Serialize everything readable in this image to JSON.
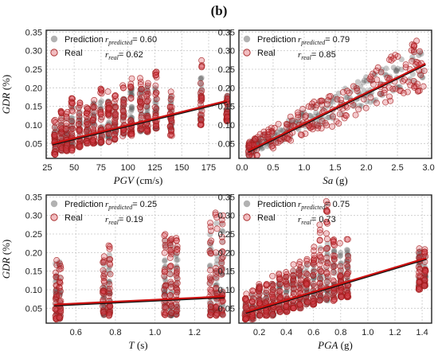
{
  "figure_label": "(b)",
  "colors": {
    "prediction": "#555555",
    "real": "#d9424a",
    "fit_line": "#cc1111",
    "grid": "#c8c8c8",
    "frame": "#222222"
  },
  "chart_data": [
    {
      "id": "pgv",
      "type": "scatter",
      "ylabel_var": "GDR",
      "ylabel_unit": " (%)",
      "xlabel_var": "PGV",
      "xlabel_unit": " (cm/s)",
      "xticks": [
        25,
        50,
        75,
        100,
        125,
        150,
        175
      ],
      "xtick_labels": [
        "25",
        "50",
        "75",
        "100",
        "125",
        "150",
        "175"
      ],
      "yticks": [
        0.05,
        0.1,
        0.15,
        0.2,
        0.25,
        0.3,
        0.35
      ],
      "ytick_labels": [
        "0.05",
        "0.10",
        "0.15",
        "0.20",
        "0.25",
        "0.30",
        "0.35"
      ],
      "xlim": [
        24,
        195
      ],
      "ylim": [
        0.01,
        0.355
      ],
      "grid": true,
      "legend": [
        {
          "label": "Prediction",
          "r_sym": "r",
          "r_sub": "predicted",
          "r_val": "= 0.60"
        },
        {
          "label": "Real",
          "r_sym": "r",
          "r_sub": "real",
          "r_val": "= 0.62"
        }
      ],
      "series": [
        {
          "name": "Prediction",
          "columns": [
            [
              32,
              0.02,
              0.1
            ],
            [
              38,
              0.03,
              0.13
            ],
            [
              43,
              0.03,
              0.12
            ],
            [
              48,
              0.04,
              0.16
            ],
            [
              55,
              0.04,
              0.15
            ],
            [
              62,
              0.05,
              0.14
            ],
            [
              68,
              0.05,
              0.16
            ],
            [
              75,
              0.05,
              0.18
            ],
            [
              82,
              0.06,
              0.17
            ],
            [
              88,
              0.06,
              0.16
            ],
            [
              96,
              0.07,
              0.19
            ],
            [
              103,
              0.08,
              0.2
            ],
            [
              112,
              0.08,
              0.21
            ],
            [
              118,
              0.08,
              0.21
            ],
            [
              126,
              0.09,
              0.22
            ],
            [
              140,
              0.09,
              0.18
            ],
            [
              168,
              0.11,
              0.24
            ],
            [
              192,
              0.11,
              0.18
            ]
          ]
        },
        {
          "name": "Real",
          "columns": [
            [
              32,
              0.02,
              0.12
            ],
            [
              38,
              0.03,
              0.15
            ],
            [
              43,
              0.03,
              0.14
            ],
            [
              48,
              0.03,
              0.18
            ],
            [
              55,
              0.04,
              0.17
            ],
            [
              62,
              0.05,
              0.16
            ],
            [
              68,
              0.05,
              0.18
            ],
            [
              75,
              0.05,
              0.2
            ],
            [
              82,
              0.05,
              0.19
            ],
            [
              88,
              0.06,
              0.18
            ],
            [
              96,
              0.07,
              0.21
            ],
            [
              103,
              0.07,
              0.23
            ],
            [
              112,
              0.08,
              0.24
            ],
            [
              118,
              0.08,
              0.22
            ],
            [
              126,
              0.09,
              0.25
            ],
            [
              140,
              0.07,
              0.2
            ],
            [
              168,
              0.1,
              0.28
            ],
            [
              192,
              0.11,
              0.18
            ]
          ]
        }
      ],
      "fit": {
        "x": [
          30,
          192
        ],
        "y": [
          0.05,
          0.165
        ]
      }
    },
    {
      "id": "sa",
      "type": "scatter",
      "ylabel_var": "",
      "ylabel_unit": "",
      "xlabel_var": "Sa",
      "xlabel_unit": " (g)",
      "xticks": [
        0.0,
        0.5,
        1.0,
        1.5,
        2.0,
        2.5,
        3.0
      ],
      "xtick_labels": [
        "0.0",
        "0.5",
        "1.0",
        "1.5",
        "2.0",
        "2.5",
        "3.0"
      ],
      "yticks": [
        0.05,
        0.1,
        0.15,
        0.2,
        0.25,
        0.3,
        0.35
      ],
      "ytick_labels": [
        "0.05",
        "0.10",
        "0.15",
        "0.20",
        "0.25",
        "0.30",
        "0.35"
      ],
      "xlim": [
        -0.05,
        3.05
      ],
      "ylim": [
        0.01,
        0.355
      ],
      "grid": true,
      "legend": [
        {
          "label": "Prediction",
          "r_sym": "r",
          "r_sub": "predicted",
          "r_val": "= 0.79"
        },
        {
          "label": "Real",
          "r_sym": "r",
          "r_sub": "real",
          "r_val": "= 0.85"
        }
      ],
      "series": [
        {
          "name": "Prediction",
          "band": {
            "x": [
              0.1,
              2.95
            ],
            "y0": [
              0.035,
              0.27
            ],
            "spread": 0.03
          }
        },
        {
          "name": "Real",
          "band": {
            "x": [
              0.1,
              2.95
            ],
            "y0": [
              0.03,
              0.27
            ],
            "spread": 0.045
          }
        }
      ],
      "fit": {
        "x": [
          0.1,
          2.95
        ],
        "y": [
          0.03,
          0.265
        ]
      }
    },
    {
      "id": "t",
      "type": "scatter",
      "ylabel_var": "GDR",
      "ylabel_unit": " (%)",
      "xlabel_var": "T",
      "xlabel_unit": " (s)",
      "xticks": [
        0.6,
        0.8,
        1.0,
        1.2
      ],
      "xtick_labels": [
        "0.6",
        "0.8",
        "1.0",
        "1.2"
      ],
      "yticks": [
        0.05,
        0.1,
        0.15,
        0.2,
        0.25,
        0.3,
        0.35
      ],
      "ytick_labels": [
        "0.05",
        "0.10",
        "0.15",
        "0.20",
        "0.25",
        "0.30",
        "0.35"
      ],
      "xlim": [
        0.45,
        1.38
      ],
      "ylim": [
        0.01,
        0.355
      ],
      "grid": true,
      "legend": [
        {
          "label": "Prediction",
          "r_sym": "r",
          "r_sub": "predicted",
          "r_val": "= 0.25"
        },
        {
          "label": "Real",
          "r_sym": "r",
          "r_sub": "real",
          "r_val": "= 0.19"
        }
      ],
      "series": [
        {
          "name": "Prediction",
          "columns": [
            [
              0.5,
              0.02,
              0.17
            ],
            [
              0.52,
              0.02,
              0.18
            ],
            [
              0.74,
              0.03,
              0.18
            ],
            [
              0.77,
              0.03,
              0.2
            ],
            [
              1.05,
              0.03,
              0.24
            ],
            [
              1.08,
              0.03,
              0.25
            ],
            [
              1.11,
              0.03,
              0.22
            ],
            [
              1.28,
              0.03,
              0.26
            ],
            [
              1.31,
              0.03,
              0.3
            ],
            [
              1.34,
              0.03,
              0.28
            ]
          ]
        },
        {
          "name": "Real",
          "columns": [
            [
              0.5,
              0.02,
              0.19
            ],
            [
              0.52,
              0.02,
              0.18
            ],
            [
              0.74,
              0.03,
              0.19
            ],
            [
              0.77,
              0.03,
              0.22
            ],
            [
              1.05,
              0.03,
              0.26
            ],
            [
              1.08,
              0.03,
              0.27
            ],
            [
              1.11,
              0.03,
              0.24
            ],
            [
              1.28,
              0.03,
              0.3
            ],
            [
              1.31,
              0.03,
              0.34
            ],
            [
              1.34,
              0.03,
              0.31
            ]
          ]
        }
      ],
      "fit": {
        "x": [
          0.49,
          1.35
        ],
        "y": [
          0.06,
          0.082
        ]
      }
    },
    {
      "id": "pga",
      "type": "scatter",
      "ylabel_var": "",
      "ylabel_unit": "",
      "xlabel_var": "PGA",
      "xlabel_unit": " (g)",
      "xticks": [
        0.2,
        0.4,
        0.6,
        0.8,
        1.0,
        1.2,
        1.4
      ],
      "xtick_labels": [
        "0.2",
        "0.4",
        "0.6",
        "0.8",
        "1.0",
        "1.2",
        "1.4"
      ],
      "yticks": [
        0.05,
        0.1,
        0.15,
        0.2,
        0.25,
        0.3,
        0.35
      ],
      "ytick_labels": [
        "0.05",
        "0.10",
        "0.15",
        "0.20",
        "0.25",
        "0.30",
        "0.35"
      ],
      "xlim": [
        0.05,
        1.47
      ],
      "ylim": [
        0.01,
        0.355
      ],
      "grid": true,
      "legend": [
        {
          "label": "Prediction",
          "r_sym": "r",
          "r_sub": "predicted",
          "r_val": "= 0.75"
        },
        {
          "label": "Real",
          "r_sym": "r",
          "r_sub": "real",
          "r_val": "= 0.73"
        }
      ],
      "series": [
        {
          "name": "Prediction",
          "columns": [
            [
              0.1,
              0.02,
              0.08
            ],
            [
              0.15,
              0.02,
              0.09
            ],
            [
              0.2,
              0.03,
              0.11
            ],
            [
              0.25,
              0.03,
              0.1
            ],
            [
              0.3,
              0.03,
              0.12
            ],
            [
              0.35,
              0.04,
              0.13
            ],
            [
              0.4,
              0.04,
              0.14
            ],
            [
              0.45,
              0.05,
              0.15
            ],
            [
              0.5,
              0.05,
              0.16
            ],
            [
              0.55,
              0.06,
              0.17
            ],
            [
              0.6,
              0.06,
              0.18
            ],
            [
              0.65,
              0.07,
              0.22
            ],
            [
              0.7,
              0.07,
              0.24
            ],
            [
              0.75,
              0.08,
              0.21
            ],
            [
              0.8,
              0.08,
              0.2
            ],
            [
              0.85,
              0.09,
              0.22
            ],
            [
              1.38,
              0.11,
              0.21
            ],
            [
              1.42,
              0.11,
              0.2
            ]
          ]
        },
        {
          "name": "Real",
          "columns": [
            [
              0.1,
              0.02,
              0.09
            ],
            [
              0.15,
              0.02,
              0.1
            ],
            [
              0.2,
              0.03,
              0.12
            ],
            [
              0.25,
              0.03,
              0.12
            ],
            [
              0.3,
              0.03,
              0.14
            ],
            [
              0.35,
              0.04,
              0.15
            ],
            [
              0.4,
              0.04,
              0.16
            ],
            [
              0.45,
              0.05,
              0.17
            ],
            [
              0.5,
              0.05,
              0.19
            ],
            [
              0.55,
              0.06,
              0.19
            ],
            [
              0.6,
              0.06,
              0.22
            ],
            [
              0.65,
              0.07,
              0.28
            ],
            [
              0.7,
              0.07,
              0.34
            ],
            [
              0.75,
              0.07,
              0.24
            ],
            [
              0.8,
              0.08,
              0.23
            ],
            [
              0.85,
              0.08,
              0.24
            ],
            [
              1.38,
              0.1,
              0.22
            ],
            [
              1.42,
              0.11,
              0.21
            ]
          ]
        }
      ],
      "fit": {
        "x": [
          0.1,
          1.43
        ],
        "y": [
          0.04,
          0.185
        ]
      }
    }
  ]
}
